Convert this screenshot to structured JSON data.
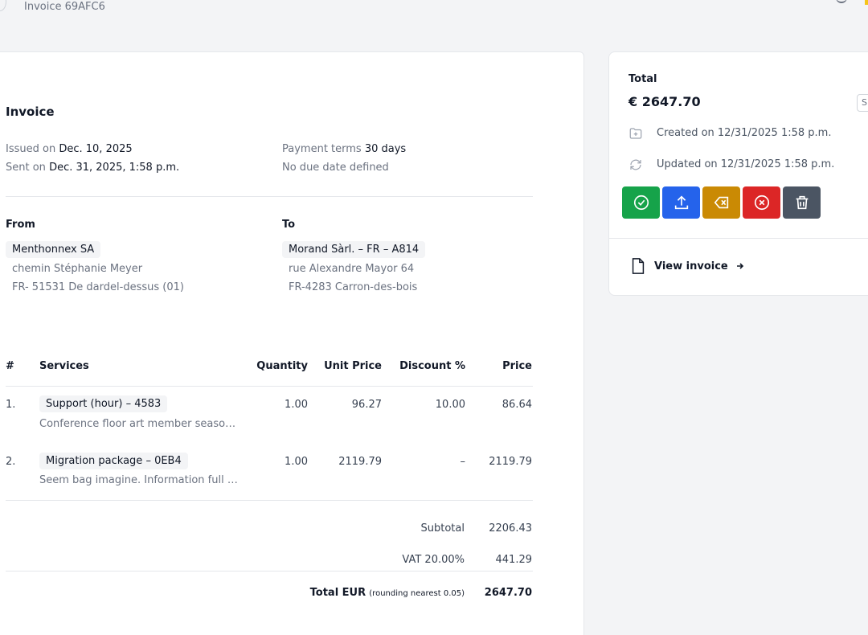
{
  "header": {
    "breadcrumb": "Invoice 69AFC6"
  },
  "invoice": {
    "title": "Invoice",
    "issued_label": "Issued on",
    "issued_value": "Dec. 10, 2025",
    "sent_label": "Sent on",
    "sent_value": "Dec. 31, 2025, 1:58 p.m.",
    "payment_terms_label": "Payment terms",
    "payment_terms_value": "30 days",
    "due_date_text": "No due date defined"
  },
  "parties": {
    "from_label": "From",
    "from_name": "Menthonnex SA",
    "from_line1": "chemin Stéphanie Meyer",
    "from_line2": "FR- 51531 De dardel-dessus (01)",
    "to_label": "To",
    "to_name": "Morand Sàrl. – FR – A814",
    "to_line1": "rue Alexandre Mayor 64",
    "to_line2": "FR-4283 Carron-des-bois"
  },
  "table": {
    "headers": {
      "num": "#",
      "services": "Services",
      "quantity": "Quantity",
      "unit_price": "Unit Price",
      "discount": "Discount %",
      "price": "Price"
    },
    "rows": [
      {
        "num": "1.",
        "name": "Support (hour) – 4583",
        "description": "Conference floor art member season c…",
        "quantity": "1.00",
        "unit_price": "96.27",
        "discount": "10.00",
        "price": "86.64"
      },
      {
        "num": "2.",
        "name": "Migration package – 0EB4",
        "description": "Seem bag imagine. Information full pr…",
        "quantity": "1.00",
        "unit_price": "2119.79",
        "discount": "–",
        "price": "2119.79"
      }
    ]
  },
  "totals": {
    "subtotal_label": "Subtotal",
    "subtotal_value": "2206.43",
    "vat_label": "VAT 20.00%",
    "vat_value": "441.29",
    "total_label": "Total EUR",
    "total_note": "(rounding nearest 0.05)",
    "total_value": "2647.70"
  },
  "sidebar": {
    "total_label": "Total",
    "total_value": "€ 2647.70",
    "status_chip": "S",
    "created_text": "Created on 12/31/2025 1:58 p.m.",
    "updated_text": "Updated on 12/31/2025 1:58 p.m.",
    "view_invoice_label": "View invoice",
    "colors": {
      "validate": "#16a34a",
      "send": "#2563eb",
      "clear": "#ca8a04",
      "cancel": "#dc2626",
      "delete": "#4b5563"
    }
  }
}
